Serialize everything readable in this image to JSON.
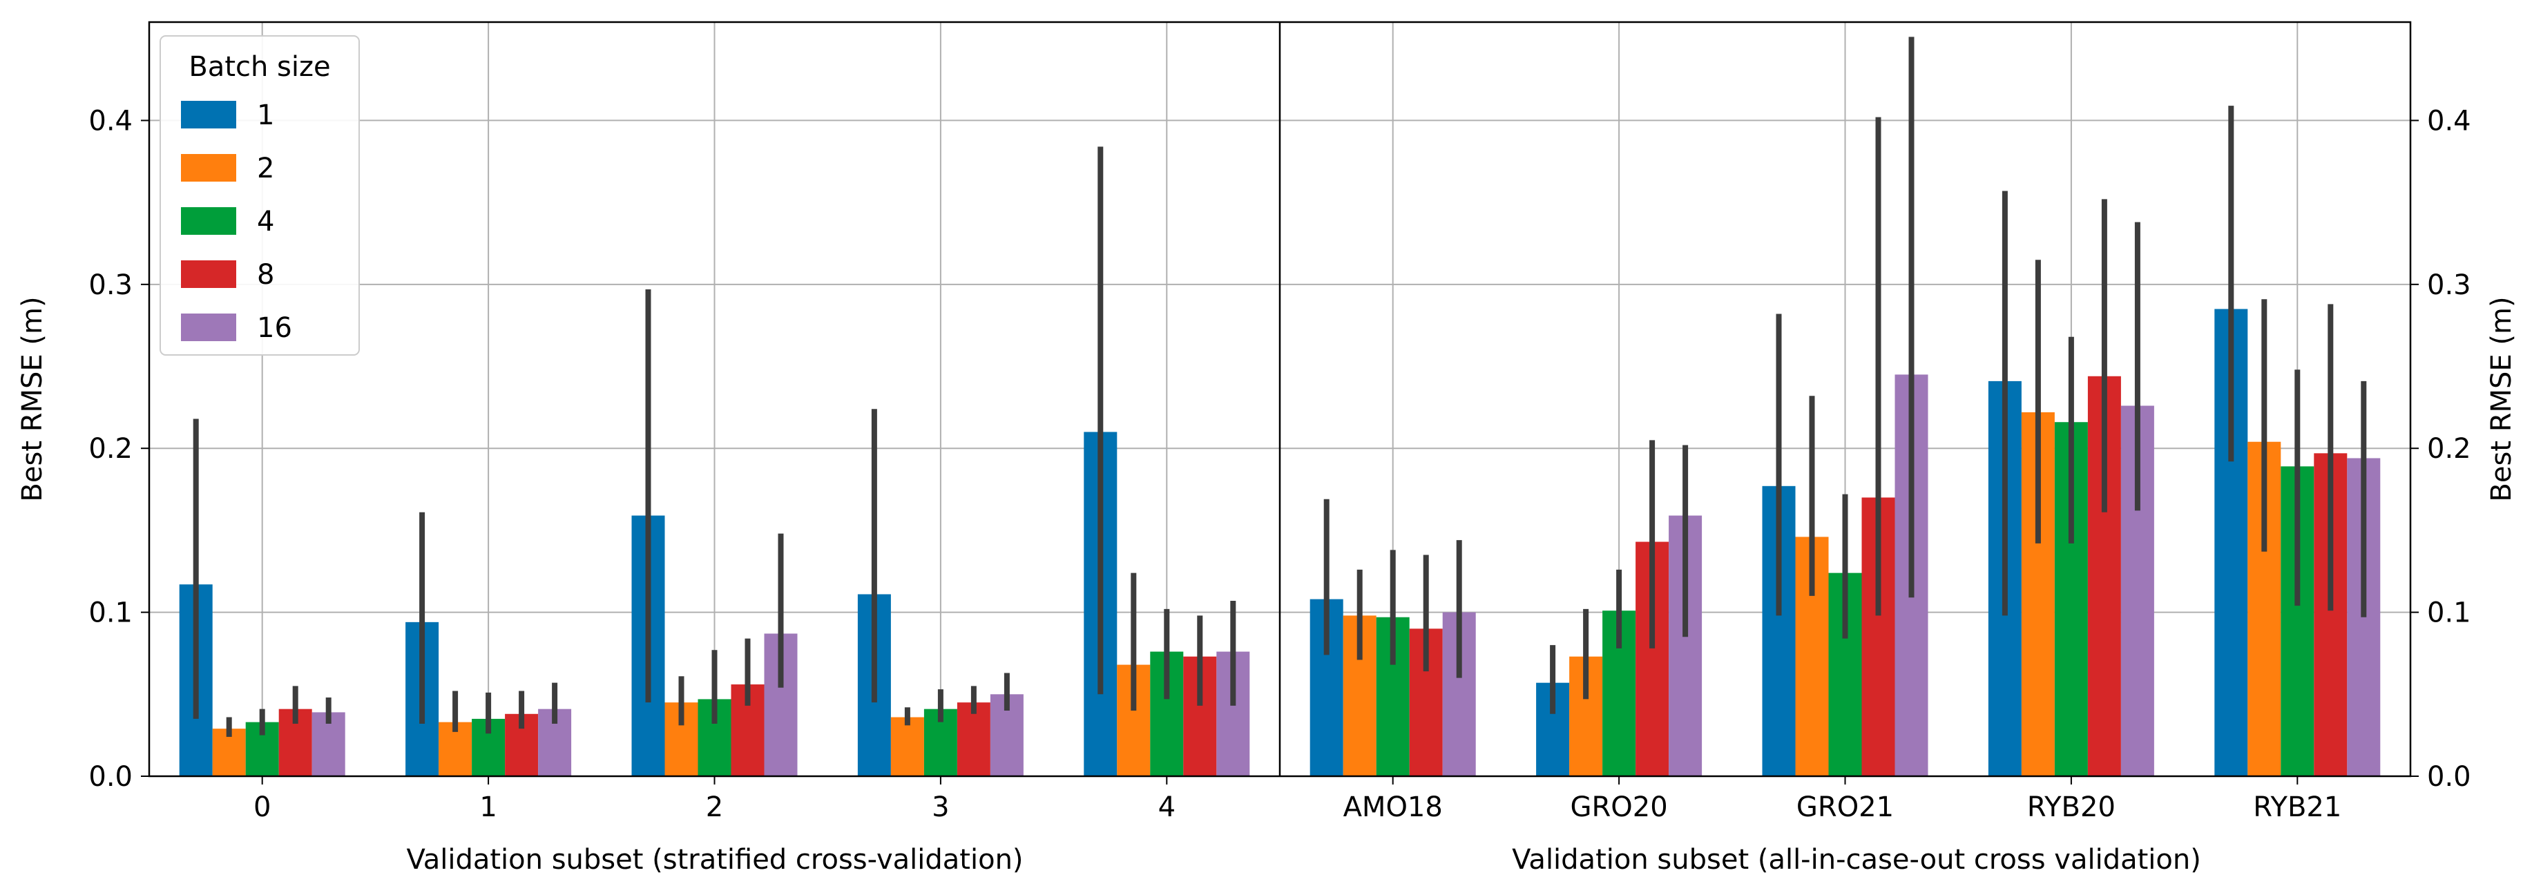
{
  "colors": {
    "1": "#0072b2",
    "2": "#ff7f0e",
    "4": "#009e3a",
    "8": "#d62728",
    "16": "#9e78b8",
    "error_bar": "#3c3c3c",
    "grid": "#b0b0b0"
  },
  "legend": {
    "title": "Batch size",
    "placement": "upper-left",
    "entries": [
      "1",
      "2",
      "4",
      "8",
      "16"
    ]
  },
  "chart_data": [
    {
      "type": "bar",
      "panel": "left",
      "xlabel": "Validation subset (stratified cross-validation)",
      "ylabel": "Best RMSE (m)",
      "ylim": [
        0,
        0.46
      ],
      "yticks": [
        "0.0",
        "0.1",
        "0.2",
        "0.3",
        "0.4"
      ],
      "grid": true,
      "categories": [
        "0",
        "1",
        "2",
        "3",
        "4"
      ],
      "series": [
        {
          "name": "1",
          "values": [
            0.117,
            0.094,
            0.159,
            0.111,
            0.21
          ],
          "err_low": [
            0.035,
            0.032,
            0.045,
            0.045,
            0.05
          ],
          "err_high": [
            0.218,
            0.161,
            0.297,
            0.224,
            0.384
          ]
        },
        {
          "name": "2",
          "values": [
            0.029,
            0.033,
            0.045,
            0.036,
            0.068
          ],
          "err_low": [
            0.024,
            0.027,
            0.031,
            0.031,
            0.04
          ],
          "err_high": [
            0.036,
            0.052,
            0.061,
            0.042,
            0.124
          ]
        },
        {
          "name": "4",
          "values": [
            0.033,
            0.035,
            0.047,
            0.041,
            0.076
          ],
          "err_low": [
            0.025,
            0.026,
            0.032,
            0.033,
            0.047
          ],
          "err_high": [
            0.041,
            0.051,
            0.077,
            0.053,
            0.102
          ]
        },
        {
          "name": "8",
          "values": [
            0.041,
            0.038,
            0.056,
            0.045,
            0.073
          ],
          "err_low": [
            0.032,
            0.029,
            0.043,
            0.038,
            0.043
          ],
          "err_high": [
            0.055,
            0.052,
            0.084,
            0.055,
            0.098
          ]
        },
        {
          "name": "16",
          "values": [
            0.039,
            0.041,
            0.087,
            0.05,
            0.076
          ],
          "err_low": [
            0.032,
            0.032,
            0.054,
            0.04,
            0.043
          ],
          "err_high": [
            0.048,
            0.057,
            0.148,
            0.063,
            0.107
          ]
        }
      ]
    },
    {
      "type": "bar",
      "panel": "right",
      "xlabel": "Validation subset (all-in-case-out cross validation)",
      "ylabel": "Best RMSE (m)",
      "ylim": [
        0,
        0.46
      ],
      "yticks": [
        "0.0",
        "0.1",
        "0.2",
        "0.3",
        "0.4"
      ],
      "grid": true,
      "categories": [
        "AMO18",
        "GRO20",
        "GRO21",
        "RYB20",
        "RYB21"
      ],
      "series": [
        {
          "name": "1",
          "values": [
            0.108,
            0.057,
            0.177,
            0.241,
            0.285
          ],
          "err_low": [
            0.074,
            0.038,
            0.098,
            0.098,
            0.192
          ],
          "err_high": [
            0.169,
            0.08,
            0.282,
            0.357,
            0.409
          ]
        },
        {
          "name": "2",
          "values": [
            0.098,
            0.073,
            0.146,
            0.222,
            0.204
          ],
          "err_low": [
            0.071,
            0.047,
            0.11,
            0.142,
            0.137
          ],
          "err_high": [
            0.126,
            0.102,
            0.232,
            0.315,
            0.291
          ]
        },
        {
          "name": "4",
          "values": [
            0.097,
            0.101,
            0.124,
            0.216,
            0.189
          ],
          "err_low": [
            0.068,
            0.078,
            0.084,
            0.142,
            0.104
          ],
          "err_high": [
            0.138,
            0.126,
            0.172,
            0.268,
            0.248
          ]
        },
        {
          "name": "8",
          "values": [
            0.09,
            0.143,
            0.17,
            0.244,
            0.197
          ],
          "err_low": [
            0.064,
            0.078,
            0.098,
            0.161,
            0.101
          ],
          "err_high": [
            0.135,
            0.205,
            0.402,
            0.352,
            0.288
          ]
        },
        {
          "name": "16",
          "values": [
            0.1,
            0.159,
            0.245,
            0.226,
            0.194
          ],
          "err_low": [
            0.06,
            0.085,
            0.109,
            0.162,
            0.097
          ],
          "err_high": [
            0.144,
            0.202,
            0.451,
            0.338,
            0.241
          ]
        }
      ]
    }
  ]
}
